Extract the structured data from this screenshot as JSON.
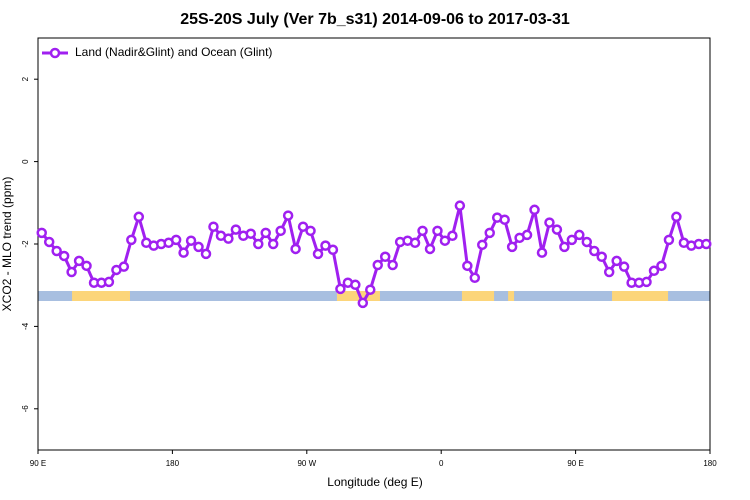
{
  "chart_data": {
    "type": "line",
    "title": "25S-20S July (Ver 7b_s31)   2014-09-06 to 2017-03-31",
    "x_label": "Longitude (deg E)",
    "y_label": "XCO2 - MLO trend (ppm)",
    "xlim": [
      90,
      540
    ],
    "ylim": [
      -7,
      3
    ],
    "xticks": [
      {
        "value": 90,
        "label": "90 E"
      },
      180,
      {
        "value": 270,
        "label": "90 W"
      },
      {
        "value": 360,
        "label": "0"
      },
      {
        "value": 450,
        "label": "90 E"
      },
      180
    ],
    "yticks": [
      -6,
      -4,
      -2,
      0,
      2
    ],
    "legend": "top-left",
    "land_spans": [
      [
        112.8,
        151.6
      ],
      [
        290.2,
        319
      ],
      [
        373.9,
        395.4
      ],
      [
        404.8,
        408.8
      ],
      [
        474.4,
        511.9
      ]
    ],
    "series": [
      {
        "name": "Land (Nadir&Glint) and Ocean (Glint)",
        "color": "#a020f0",
        "x": [
          92.5,
          97.5,
          102.5,
          107.5,
          112.5,
          117.5,
          122.5,
          127.5,
          132.5,
          137.5,
          142.5,
          147.5,
          152.5,
          157.5,
          162.5,
          167.5,
          172.5,
          177.5,
          182.5,
          187.5,
          192.5,
          197.5,
          202.5,
          207.5,
          212.5,
          217.5,
          222.5,
          227.5,
          232.5,
          237.5,
          242.5,
          247.5,
          252.5,
          257.5,
          262.5,
          267.5,
          272.5,
          277.5,
          282.5,
          287.5,
          292.5,
          297.5,
          302.5,
          307.5,
          312.5,
          317.5,
          322.5,
          327.5,
          332.5,
          337.5,
          342.5,
          347.5,
          352.5,
          357.5,
          362.5,
          367.5,
          372.5,
          377.5,
          382.5,
          387.5,
          392.5,
          397.5,
          402.5,
          407.5,
          412.5,
          417.5,
          422.5,
          427.5,
          432.5,
          437.5,
          442.5,
          447.5,
          452.5,
          457.5,
          462.5,
          467.5,
          472.5,
          477.5,
          482.5,
          487.5,
          492.5,
          497.5,
          502.5,
          507.5,
          512.5,
          517.5,
          522.5,
          527.5,
          532.5,
          537.5
        ],
        "values": [
          -1.73,
          -1.95,
          -2.17,
          -2.29,
          -2.68,
          -2.41,
          -2.53,
          -2.94,
          -2.94,
          -2.92,
          -2.63,
          -2.55,
          -1.9,
          -1.34,
          -1.97,
          -2.04,
          -2.0,
          -1.97,
          -1.9,
          -2.21,
          -1.92,
          -2.07,
          -2.24,
          -1.58,
          -1.8,
          -1.87,
          -1.65,
          -1.8,
          -1.75,
          -2.0,
          -1.73,
          -2.0,
          -1.68,
          -1.31,
          -2.12,
          -1.58,
          -1.68,
          -2.24,
          -2.04,
          -2.14,
          -3.09,
          -2.94,
          -2.99,
          -3.43,
          -3.11,
          -2.51,
          -2.31,
          -2.51,
          -1.95,
          -1.92,
          -1.97,
          -1.68,
          -2.12,
          -1.68,
          -1.92,
          -1.8,
          -1.07,
          -2.53,
          -2.82,
          -2.02,
          -1.73,
          -1.36,
          -1.41,
          -2.07,
          -1.85,
          -1.78,
          -1.17,
          -2.21,
          -1.48,
          -1.65,
          -2.07,
          -1.9,
          -1.78,
          -1.95,
          -2.17,
          -2.31,
          -2.68,
          -2.41,
          -2.55,
          -2.94,
          -2.94,
          -2.92,
          -2.65,
          -2.53,
          -1.9,
          -1.34,
          -1.97,
          -2.04,
          -2.0,
          -2.0
        ]
      }
    ]
  }
}
